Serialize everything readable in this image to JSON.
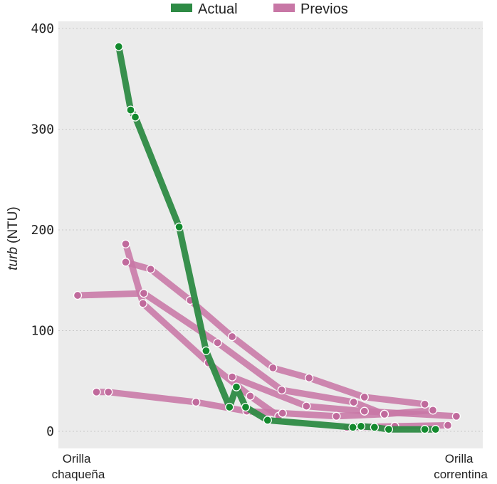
{
  "chart_data": {
    "type": "line",
    "title": "",
    "xlabel": "",
    "ylabel_italic": "turb",
    "ylabel_unit": "(NTU)",
    "x_range": [
      0,
      100
    ],
    "ylim": [
      -15,
      400
    ],
    "yticks": [
      0,
      100,
      200,
      300,
      400
    ],
    "x_end_labels": {
      "left": [
        "Orilla",
        "chaqueña"
      ],
      "right": [
        "Orilla",
        "correntina"
      ]
    },
    "grid": "horizontal-dotted",
    "legend_position": "top-center",
    "series": [
      {
        "name": "Actual",
        "color": "#2e8b45",
        "marker_color": "#138a2e",
        "lines": [
          [
            [
              10.7,
              382
            ],
            [
              13.8,
              319
            ],
            [
              15.0,
              312
            ],
            [
              26.4,
              203
            ],
            [
              33.4,
              80
            ],
            [
              39.5,
              24
            ],
            [
              41.3,
              44
            ],
            [
              43.7,
              24
            ],
            [
              49.4,
              11
            ],
            [
              71.6,
              4
            ],
            [
              73.7,
              5
            ],
            [
              77.2,
              4
            ],
            [
              80.9,
              2
            ],
            [
              90.3,
              2
            ],
            [
              93.1,
              2
            ]
          ]
        ]
      },
      {
        "name": "Previos",
        "color": "#c877a6",
        "marker_color": "#c06a9c",
        "lines": [
          [
            [
              0,
              135
            ],
            [
              17.2,
              137
            ],
            [
              36.4,
              88
            ],
            [
              53.1,
              41
            ],
            [
              71.8,
              29
            ],
            [
              79.8,
              17
            ]
          ],
          [
            [
              12.5,
              168
            ],
            [
              19.0,
              161
            ],
            [
              29.3,
              130
            ],
            [
              40.2,
              94
            ],
            [
              50.8,
              63
            ],
            [
              60.2,
              53
            ],
            [
              74.6,
              34
            ],
            [
              90.3,
              27
            ]
          ],
          [
            [
              12.5,
              186
            ],
            [
              17.0,
              127
            ],
            [
              34.0,
              68
            ],
            [
              44.9,
              35
            ],
            [
              52.3,
              15
            ]
          ],
          [
            [
              4.9,
              39
            ],
            [
              8.0,
              39
            ],
            [
              30.8,
              29
            ],
            [
              44.0,
              20
            ],
            [
              53.3,
              18
            ],
            [
              67.3,
              15
            ],
            [
              79.8,
              17
            ],
            [
              92.4,
              21
            ]
          ],
          [
            [
              70.0,
              4
            ],
            [
              82.5,
              5
            ],
            [
              96.3,
              6
            ]
          ],
          [
            [
              40.2,
              54
            ],
            [
              59.5,
              25
            ],
            [
              74.6,
              20
            ],
            [
              98.5,
              15
            ]
          ]
        ]
      }
    ]
  }
}
